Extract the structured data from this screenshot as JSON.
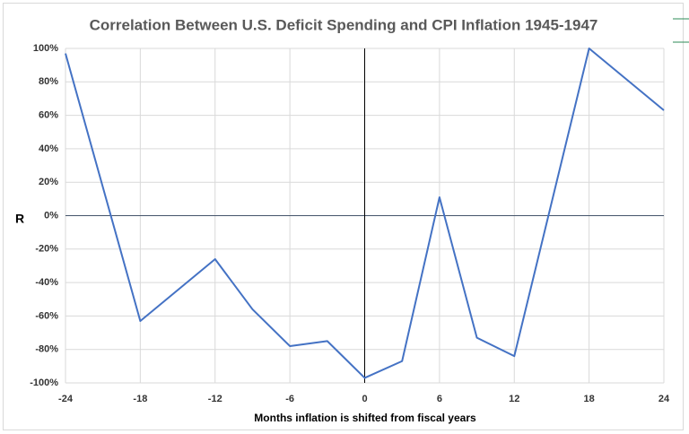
{
  "chart_data": {
    "type": "line",
    "title": "Correlation Between U.S. Deficit Spending and CPI Inflation 1945-1947",
    "x_label": "Months inflation is shifted from fiscal years",
    "y_label": "R",
    "x": [
      -24,
      -18,
      -12,
      -9,
      -6,
      -3,
      0,
      3,
      6,
      9,
      12,
      18,
      24
    ],
    "series": [
      {
        "name": "R",
        "color": "#4472c4",
        "values": [
          97,
          -63,
          -26,
          -56,
          -78,
          -75,
          -97,
          -87,
          11,
          -73,
          -84,
          100,
          63
        ]
      }
    ],
    "xlim": [
      -24,
      24
    ],
    "xticks": [
      -24,
      -18,
      -12,
      -6,
      0,
      6,
      12,
      18,
      24
    ],
    "ylim": [
      -100,
      100
    ],
    "yticks": [
      {
        "value": -100,
        "label": "-100%"
      },
      {
        "value": -80,
        "label": "-80%"
      },
      {
        "value": -60,
        "label": "-60%"
      },
      {
        "value": -40,
        "label": "-40%"
      },
      {
        "value": -20,
        "label": "-20%"
      },
      {
        "value": 0,
        "label": "0%"
      },
      {
        "value": 20,
        "label": "20%"
      },
      {
        "value": 40,
        "label": "40%"
      },
      {
        "value": 60,
        "label": "60%"
      },
      {
        "value": 80,
        "label": "80%"
      },
      {
        "value": 100,
        "label": "100%"
      }
    ],
    "grid": true
  }
}
